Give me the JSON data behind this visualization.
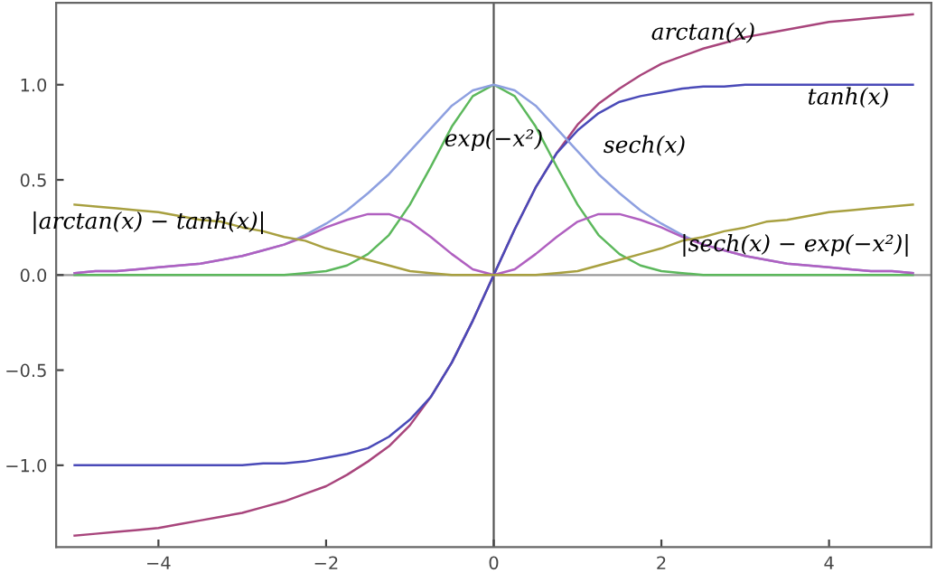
{
  "chart_data": {
    "type": "line",
    "x": [
      -5,
      -4.75,
      -4.5,
      -4.25,
      -4,
      -3.75,
      -3.5,
      -3.25,
      -3,
      -2.75,
      -2.5,
      -2.25,
      -2,
      -1.75,
      -1.5,
      -1.25,
      -1,
      -0.75,
      -0.5,
      -0.25,
      0,
      0.25,
      0.5,
      0.75,
      1,
      1.25,
      1.5,
      1.75,
      2,
      2.25,
      2.5,
      2.75,
      3,
      3.25,
      3.5,
      3.75,
      4,
      4.25,
      4.5,
      4.75,
      5
    ],
    "series": [
      {
        "name": "arctan(x)",
        "color": "#a8457c",
        "values": [
          -1.37,
          -1.36,
          -1.35,
          -1.34,
          -1.33,
          -1.31,
          -1.29,
          -1.27,
          -1.25,
          -1.22,
          -1.19,
          -1.15,
          -1.11,
          -1.05,
          -0.98,
          -0.9,
          -0.79,
          -0.64,
          -0.46,
          -0.24,
          0,
          0.24,
          0.46,
          0.64,
          0.79,
          0.9,
          0.98,
          1.05,
          1.11,
          1.15,
          1.19,
          1.22,
          1.25,
          1.27,
          1.29,
          1.31,
          1.33,
          1.34,
          1.35,
          1.36,
          1.37
        ]
      },
      {
        "name": "tanh(x)",
        "color": "#4a4ab8",
        "values": [
          -1.0,
          -1.0,
          -1.0,
          -1.0,
          -1.0,
          -1.0,
          -1.0,
          -1.0,
          -1.0,
          -0.99,
          -0.99,
          -0.98,
          -0.96,
          -0.94,
          -0.91,
          -0.85,
          -0.76,
          -0.64,
          -0.46,
          -0.24,
          0,
          0.24,
          0.46,
          0.64,
          0.76,
          0.85,
          0.91,
          0.94,
          0.96,
          0.98,
          0.99,
          0.99,
          1.0,
          1.0,
          1.0,
          1.0,
          1.0,
          1.0,
          1.0,
          1.0,
          1.0
        ]
      },
      {
        "name": "exp(−x²)",
        "color": "#5cb85c",
        "values": [
          0,
          0,
          0,
          0,
          0,
          0,
          0,
          0,
          0,
          0,
          0,
          0.01,
          0.02,
          0.05,
          0.11,
          0.21,
          0.37,
          0.57,
          0.78,
          0.94,
          1,
          0.94,
          0.78,
          0.57,
          0.37,
          0.21,
          0.11,
          0.05,
          0.02,
          0.01,
          0,
          0,
          0,
          0,
          0,
          0,
          0,
          0,
          0,
          0,
          0
        ]
      },
      {
        "name": "sech(x)",
        "color": "#8ea0e0",
        "values": [
          0.01,
          0.02,
          0.02,
          0.03,
          0.04,
          0.05,
          0.06,
          0.08,
          0.1,
          0.13,
          0.16,
          0.21,
          0.27,
          0.34,
          0.43,
          0.53,
          0.65,
          0.77,
          0.89,
          0.97,
          1,
          0.97,
          0.89,
          0.77,
          0.65,
          0.53,
          0.43,
          0.34,
          0.27,
          0.21,
          0.16,
          0.13,
          0.1,
          0.08,
          0.06,
          0.05,
          0.04,
          0.03,
          0.02,
          0.02,
          0.01
        ]
      },
      {
        "name": "|sech(x) − exp(−x²)|",
        "color": "#b060c0",
        "values": [
          0.01,
          0.02,
          0.02,
          0.03,
          0.04,
          0.05,
          0.06,
          0.08,
          0.1,
          0.13,
          0.16,
          0.2,
          0.25,
          0.29,
          0.32,
          0.32,
          0.28,
          0.2,
          0.11,
          0.03,
          0,
          0.03,
          0.11,
          0.2,
          0.28,
          0.32,
          0.32,
          0.29,
          0.25,
          0.2,
          0.16,
          0.13,
          0.1,
          0.08,
          0.06,
          0.05,
          0.04,
          0.03,
          0.02,
          0.02,
          0.01
        ]
      },
      {
        "name": "|arctan(x) − tanh(x)|",
        "color": "#a8a040",
        "values": [
          0.37,
          0.36,
          0.35,
          0.34,
          0.33,
          0.31,
          0.29,
          0.28,
          0.25,
          0.23,
          0.2,
          0.18,
          0.14,
          0.11,
          0.08,
          0.05,
          0.02,
          0.01,
          0,
          0,
          0,
          0,
          0,
          0.01,
          0.02,
          0.05,
          0.08,
          0.11,
          0.14,
          0.18,
          0.2,
          0.23,
          0.25,
          0.28,
          0.29,
          0.31,
          0.33,
          0.34,
          0.35,
          0.36,
          0.37
        ]
      }
    ],
    "ref_lines": [
      {
        "axis": "x",
        "value": 0,
        "color": "#555555"
      },
      {
        "axis": "y",
        "value": 0,
        "color": "#999999"
      }
    ],
    "xlim": [
      -5.22,
      5.22
    ],
    "ylim": [
      -1.43,
      1.43
    ],
    "xticks": [
      {
        "value": -4,
        "label": "−4"
      },
      {
        "value": -2,
        "label": "−2"
      },
      0,
      2,
      4
    ],
    "yticks": [
      {
        "value": -1,
        "label": "−1.0"
      },
      {
        "value": -0.5,
        "label": "−0.5"
      },
      {
        "value": 0,
        "label": "0.0"
      },
      {
        "value": 0.5,
        "label": "0.5"
      },
      {
        "value": 1,
        "label": "1.0"
      }
    ],
    "grid": false
  }
}
